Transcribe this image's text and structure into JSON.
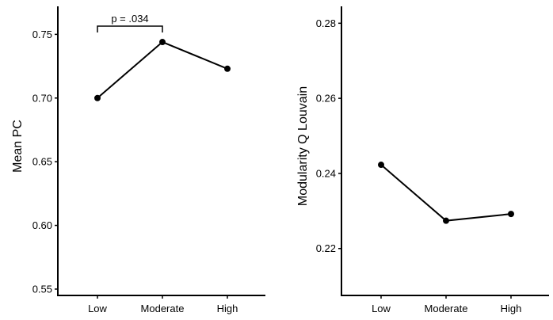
{
  "chart_data": [
    {
      "type": "line",
      "categories": [
        "Low",
        "Moderate",
        "High"
      ],
      "values": [
        0.7,
        0.744,
        0.723
      ],
      "ylabel": "Mean PC",
      "xlabel": "",
      "ylim": [
        0.545,
        0.772
      ],
      "yticks": [
        0.55,
        0.6,
        0.65,
        0.7,
        0.75
      ],
      "ytick_labels": [
        "0.55",
        "0.60",
        "0.65",
        "0.70",
        "0.75"
      ],
      "grid": false,
      "annotation": {
        "text": "p = .034",
        "from": "Low",
        "to": "Moderate"
      },
      "color": "#000000"
    },
    {
      "type": "line",
      "categories": [
        "Low",
        "Moderate",
        "High"
      ],
      "values": [
        0.2423,
        0.2274,
        0.2292
      ],
      "ylabel": "Modularity Q Louvain",
      "xlabel": "",
      "ylim": [
        0.2075,
        0.2845
      ],
      "yticks": [
        0.22,
        0.24,
        0.26,
        0.28
      ],
      "ytick_labels": [
        "0.22",
        "0.24",
        "0.26",
        "0.28"
      ],
      "grid": false,
      "color": "#000000"
    }
  ]
}
